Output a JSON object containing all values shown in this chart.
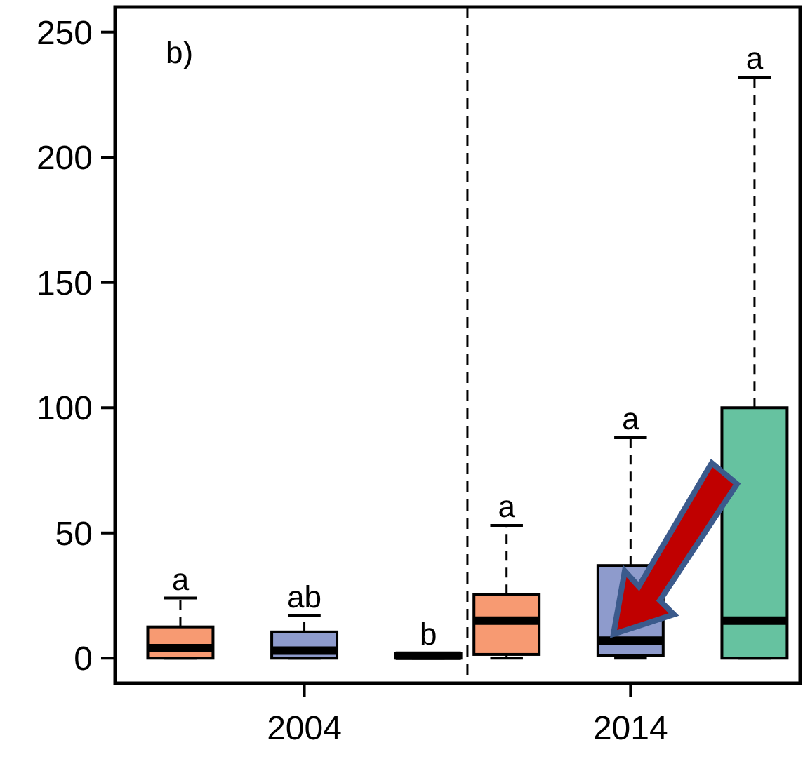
{
  "chart_data": {
    "type": "box",
    "categories": [
      "2004",
      "2014"
    ],
    "series": [
      {
        "color": "#f79a72",
        "boxes": [
          {
            "low": 0,
            "q1": 0,
            "median": 4,
            "q3": 12.5,
            "high": 24
          },
          {
            "low": 0,
            "q1": 1.5,
            "median": 15,
            "q3": 25.5,
            "high": 53
          }
        ]
      },
      {
        "color": "#8e9bcc",
        "boxes": [
          {
            "low": 0,
            "q1": 0,
            "median": 3,
            "q3": 10.5,
            "high": 17
          },
          {
            "low": 0,
            "q1": 1,
            "median": 7,
            "q3": 37,
            "high": 88
          }
        ]
      },
      {
        "color": "#66c2a0",
        "boxes": [
          {
            "low": 0,
            "q1": 0,
            "median": 1,
            "q3": 2,
            "high": 2
          },
          {
            "low": 0,
            "q1": 0,
            "median": 15,
            "q3": 100,
            "high": 232
          }
        ]
      }
    ],
    "ylim": [
      -10,
      260
    ],
    "yticks": [
      0,
      50,
      100,
      150,
      200,
      250
    ],
    "grid": false,
    "annotations": [
      "b)",
      "a",
      "ab",
      "b",
      "a",
      "a",
      "a"
    ]
  }
}
